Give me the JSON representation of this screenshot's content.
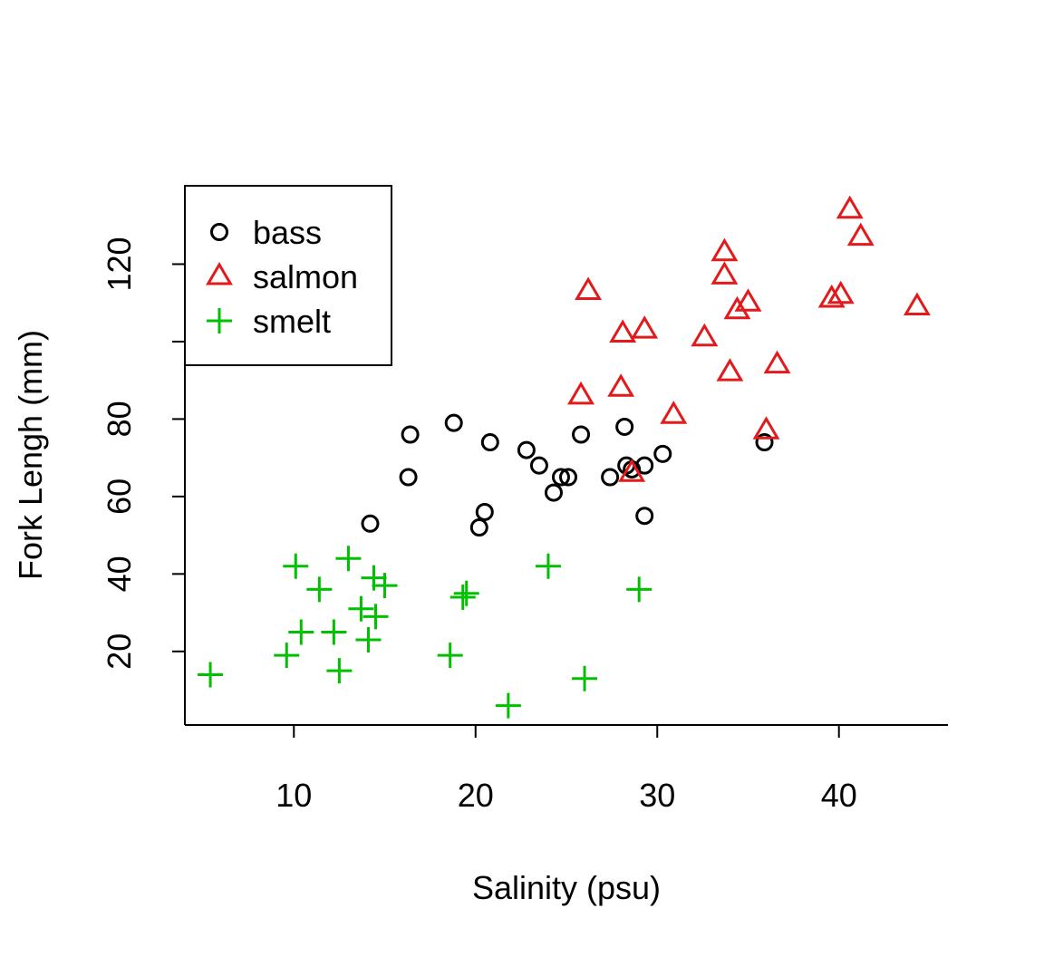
{
  "chart_data": {
    "type": "scatter",
    "xlabel": "Salinity (psu)",
    "ylabel": "Fork Lengh (mm)",
    "xlim": [
      4,
      46
    ],
    "ylim": [
      1,
      140
    ],
    "x_ticks": [
      10,
      20,
      30,
      40
    ],
    "y_ticks": [
      20,
      40,
      60,
      80,
      100,
      120
    ],
    "y_tick_labels": [
      "20",
      "40",
      "60",
      "80",
      "",
      "120"
    ],
    "grid": false,
    "legend_position": "top-left",
    "series": [
      {
        "name": "bass",
        "marker": "circle",
        "color": "#000000",
        "points": [
          [
            14.2,
            53
          ],
          [
            16.3,
            65
          ],
          [
            16.4,
            76
          ],
          [
            18.8,
            79
          ],
          [
            20.2,
            52
          ],
          [
            20.5,
            56
          ],
          [
            20.8,
            74
          ],
          [
            22.8,
            72
          ],
          [
            23.5,
            68
          ],
          [
            24.3,
            61
          ],
          [
            24.7,
            65
          ],
          [
            25.1,
            65
          ],
          [
            25.8,
            76
          ],
          [
            27.4,
            65
          ],
          [
            28.2,
            78
          ],
          [
            28.3,
            68
          ],
          [
            28.6,
            67
          ],
          [
            29.3,
            68
          ],
          [
            29.3,
            55
          ],
          [
            30.3,
            71
          ],
          [
            35.9,
            74
          ]
        ]
      },
      {
        "name": "salmon",
        "marker": "triangle",
        "color": "#e31a1c",
        "points": [
          [
            25.8,
            86
          ],
          [
            26.2,
            113
          ],
          [
            28.0,
            88
          ],
          [
            28.1,
            102
          ],
          [
            28.6,
            66
          ],
          [
            29.3,
            103
          ],
          [
            30.9,
            81
          ],
          [
            32.6,
            101
          ],
          [
            33.7,
            123
          ],
          [
            33.7,
            117
          ],
          [
            34.0,
            92
          ],
          [
            34.4,
            108
          ],
          [
            35.0,
            110
          ],
          [
            36.0,
            77
          ],
          [
            36.6,
            94
          ],
          [
            39.6,
            111
          ],
          [
            40.1,
            112
          ],
          [
            40.6,
            134
          ],
          [
            41.2,
            127
          ],
          [
            44.3,
            109
          ]
        ]
      },
      {
        "name": "smelt",
        "marker": "plus",
        "color": "#00c000",
        "points": [
          [
            5.4,
            14
          ],
          [
            9.6,
            19
          ],
          [
            10.1,
            42
          ],
          [
            10.4,
            25
          ],
          [
            11.4,
            36
          ],
          [
            12.2,
            25
          ],
          [
            12.5,
            15
          ],
          [
            13.0,
            44
          ],
          [
            13.7,
            31
          ],
          [
            14.1,
            23
          ],
          [
            14.4,
            39
          ],
          [
            14.5,
            29
          ],
          [
            15.0,
            37
          ],
          [
            18.6,
            19
          ],
          [
            19.3,
            34
          ],
          [
            19.5,
            35
          ],
          [
            21.8,
            6
          ],
          [
            24.0,
            42
          ],
          [
            26.0,
            13
          ],
          [
            29.0,
            36
          ]
        ]
      }
    ]
  }
}
